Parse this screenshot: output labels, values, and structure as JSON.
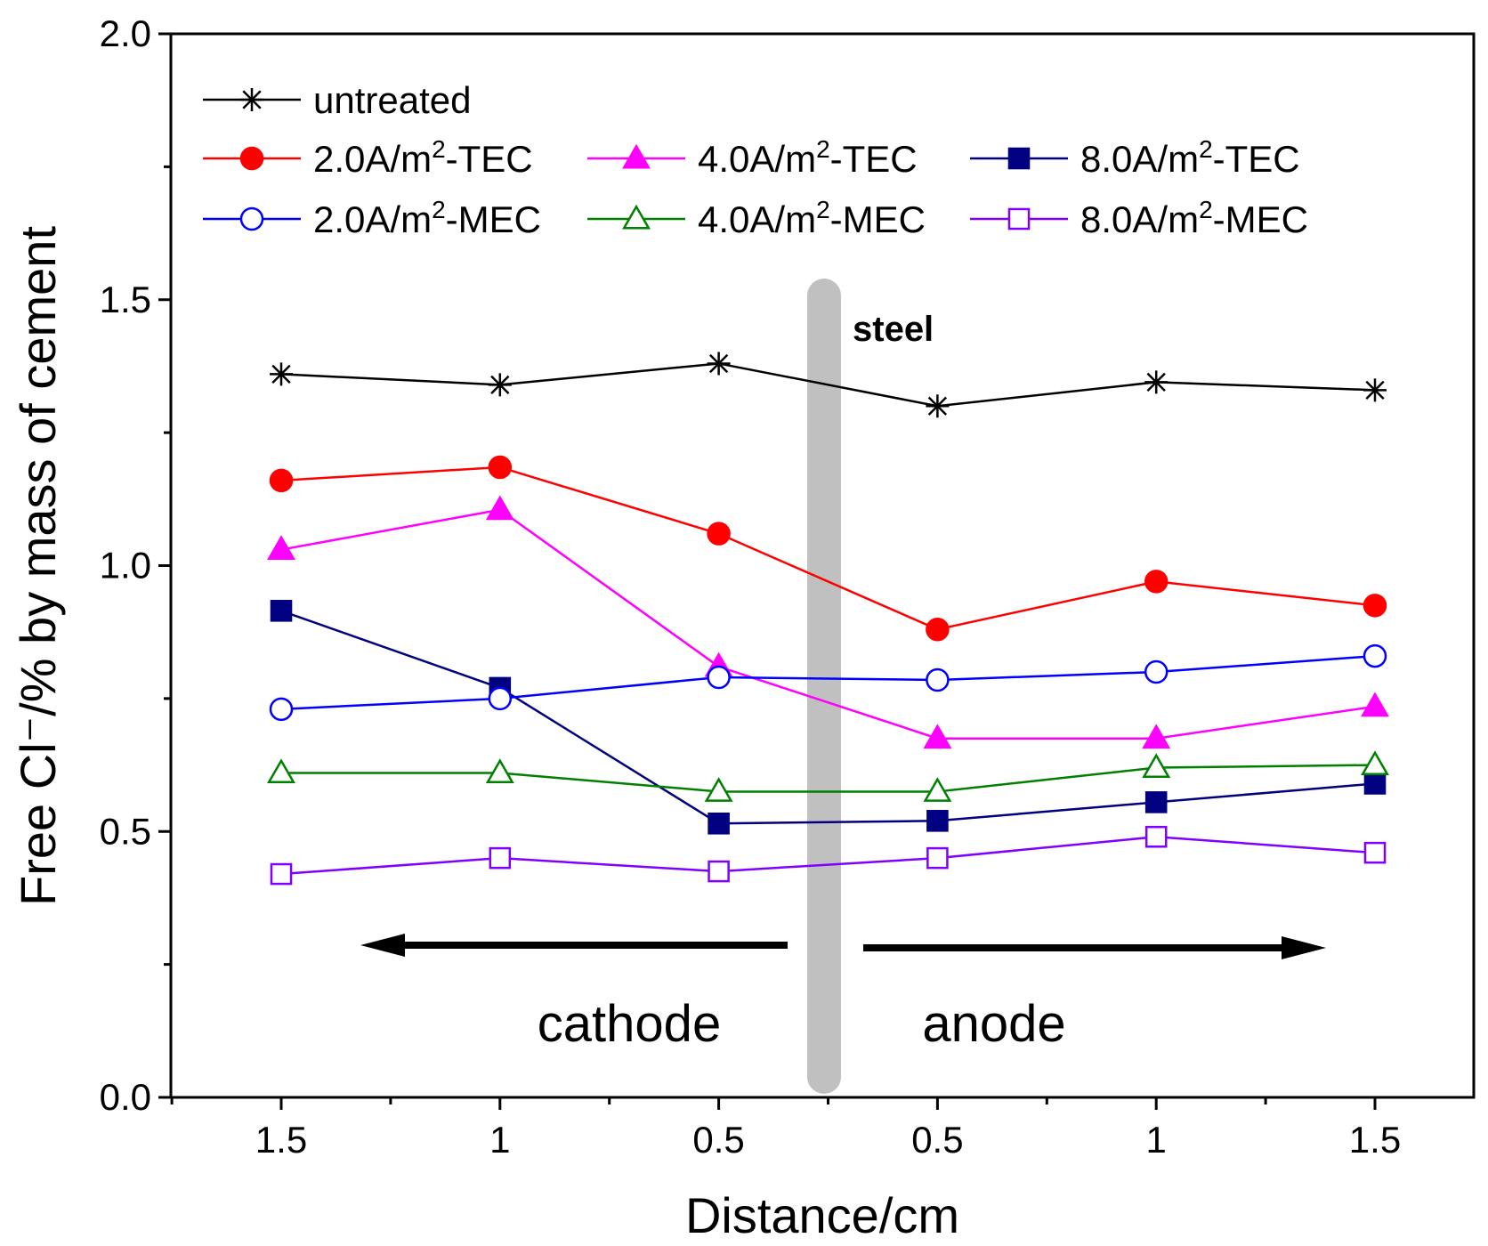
{
  "chart_data": {
    "type": "line",
    "title": "",
    "xlabel": "Distance/cm",
    "ylabel": "Free Cl⁻/% by mass of cement",
    "ylim": [
      0.0,
      2.0
    ],
    "yticks": [
      "0.0",
      "0.5",
      "1.0",
      "1.5",
      "2.0"
    ],
    "categories": [
      "1.5",
      "1",
      "0.5",
      "0.5",
      "1",
      "1.5"
    ],
    "legend_position": "top-left",
    "annotations": {
      "steel": "steel",
      "cathode": "cathode",
      "anode": "anode"
    },
    "series": [
      {
        "name": "untreated",
        "label_main": "untreated",
        "label_sup": "",
        "label_suffix": "",
        "color": "#000000",
        "marker": "star",
        "values": [
          1.36,
          1.34,
          1.38,
          1.3,
          1.345,
          1.33
        ]
      },
      {
        "name": "2.0A/m2-TEC",
        "label_main": "2.0A/m",
        "label_sup": "2",
        "label_suffix": "-TEC",
        "color": "#ff0000",
        "marker": "circle-filled",
        "values": [
          1.16,
          1.185,
          1.06,
          0.88,
          0.97,
          0.925
        ]
      },
      {
        "name": "4.0A/m2-TEC",
        "label_main": "4.0A/m",
        "label_sup": "2",
        "label_suffix": "-TEC",
        "color": "#ff00ff",
        "marker": "triangle-filled",
        "values": [
          1.03,
          1.105,
          0.81,
          0.675,
          0.675,
          0.735
        ]
      },
      {
        "name": "8.0A/m2-TEC",
        "label_main": "8.0A/m",
        "label_sup": "2",
        "label_suffix": "-TEC",
        "color": "#000080",
        "marker": "square-filled",
        "values": [
          0.915,
          0.77,
          0.515,
          0.52,
          0.555,
          0.59
        ]
      },
      {
        "name": "2.0A/m2-MEC",
        "label_main": "2.0A/m",
        "label_sup": "2",
        "label_suffix": "-MEC",
        "color": "#0000ff",
        "marker": "circle-open",
        "values": [
          0.73,
          0.75,
          0.79,
          0.785,
          0.8,
          0.83
        ]
      },
      {
        "name": "4.0A/m2-MEC",
        "label_main": "4.0A/m",
        "label_sup": "2",
        "label_suffix": "-MEC",
        "color": "#008000",
        "marker": "triangle-open",
        "values": [
          0.61,
          0.61,
          0.575,
          0.575,
          0.62,
          0.625
        ]
      },
      {
        "name": "8.0A/m2-MEC",
        "label_main": "8.0A/m",
        "label_sup": "2",
        "label_suffix": "-MEC",
        "color": "#8000ff",
        "marker": "square-open",
        "values": [
          0.42,
          0.45,
          0.425,
          0.45,
          0.49,
          0.46
        ]
      }
    ]
  }
}
